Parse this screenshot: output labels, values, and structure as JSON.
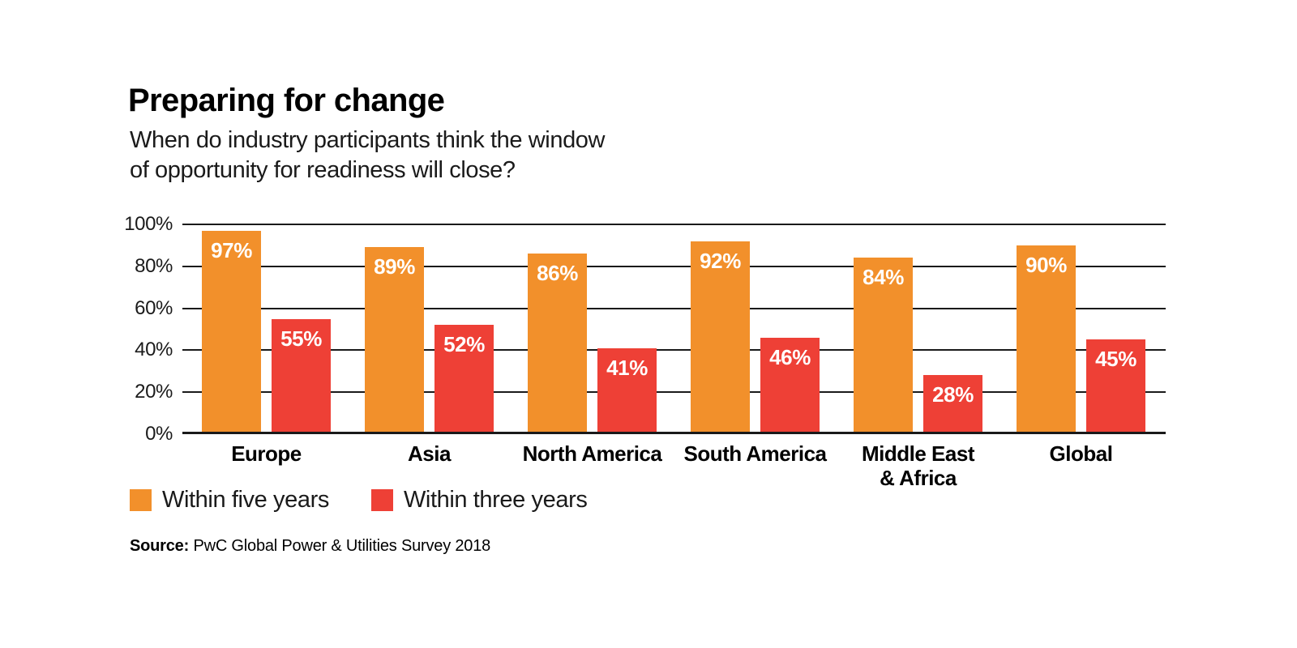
{
  "header": {
    "title": "Preparing for change",
    "subtitle_line1": "When do industry participants think the window",
    "subtitle_line2": "of opportunity for readiness will close?"
  },
  "chart_data": {
    "type": "bar",
    "categories": [
      "Europe",
      "Asia",
      "North America",
      "South America",
      "Middle East\n& Africa",
      "Global"
    ],
    "series": [
      {
        "name": "Within five years",
        "color": "#F2902B",
        "values": [
          97,
          89,
          86,
          92,
          84,
          90
        ]
      },
      {
        "name": "Within three years",
        "color": "#EE4036",
        "values": [
          55,
          52,
          41,
          46,
          28,
          45
        ]
      }
    ],
    "y_ticks": [
      0,
      20,
      40,
      60,
      80,
      100
    ],
    "y_tick_labels": [
      "0%",
      "20%",
      "40%",
      "60%",
      "80%",
      "100%"
    ],
    "ylim": [
      0,
      100
    ],
    "grid": true,
    "value_suffix": "%",
    "legend_position": "bottom-left"
  },
  "legend": [
    {
      "label": "Within five years",
      "color": "#F2902B"
    },
    {
      "label": "Within three years",
      "color": "#EE4036"
    }
  ],
  "source": {
    "label": "Source:",
    "text": "PwC Global Power & Utilities Survey 2018"
  },
  "colors": {
    "orange": "#F2902B",
    "red": "#EE4036",
    "axis_line": "#1A1A1A",
    "bar_label_text": "#FFFFFF"
  }
}
